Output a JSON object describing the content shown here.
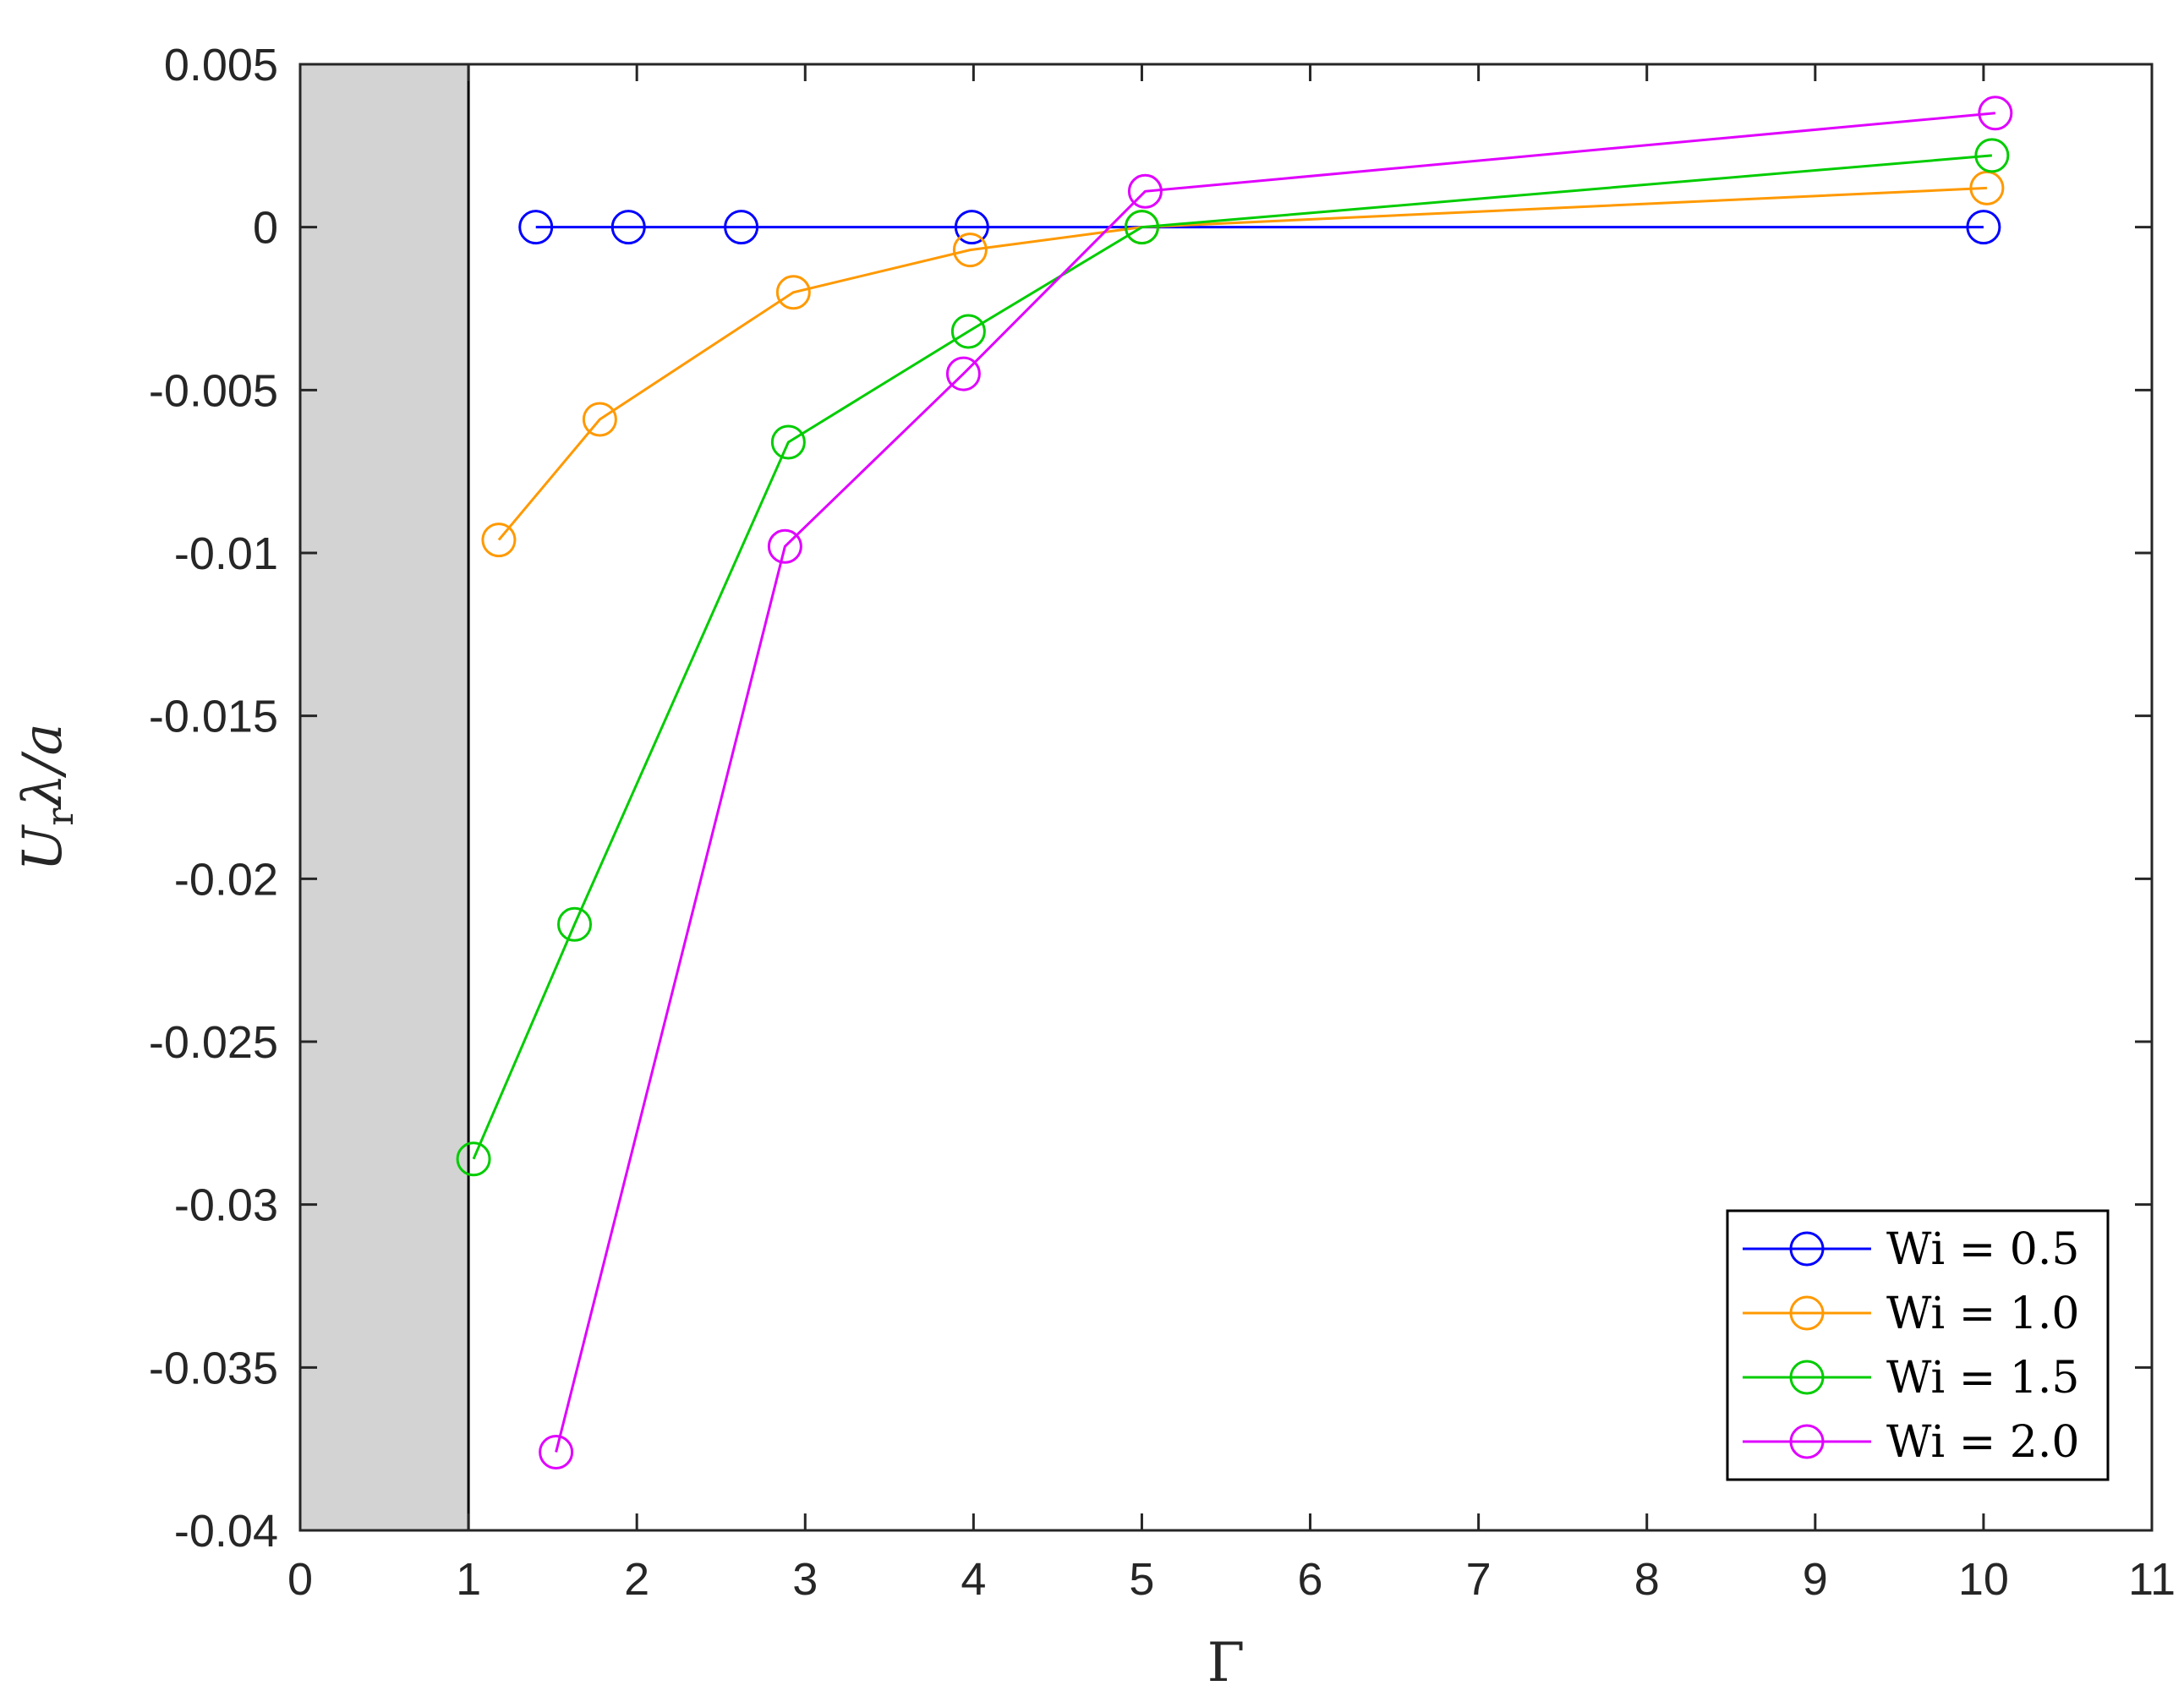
{
  "chart_data": {
    "type": "line",
    "title": "",
    "xlabel": "Γ",
    "ylabel_parts": {
      "base": "U",
      "subscript": "r",
      "rest": "λ/a"
    },
    "xlim": [
      0,
      11
    ],
    "ylim": [
      -0.04,
      0.005
    ],
    "xticks": [
      0,
      1,
      2,
      3,
      4,
      5,
      6,
      7,
      8,
      9,
      10,
      11
    ],
    "xtick_labels": [
      "0",
      "1",
      "2",
      "3",
      "4",
      "5",
      "6",
      "7",
      "8",
      "9",
      "10",
      "11"
    ],
    "yticks": [
      0.005,
      0,
      -0.005,
      -0.01,
      -0.015,
      -0.02,
      -0.025,
      -0.03,
      -0.035,
      -0.04
    ],
    "ytick_labels": [
      "0.005",
      "0",
      "-0.005",
      "-0.01",
      "-0.015",
      "-0.02",
      "-0.025",
      "-0.03",
      "-0.035",
      "-0.04"
    ],
    "grid": false,
    "legend_position": "bottom-right",
    "shaded_region": {
      "x": [
        0,
        1
      ],
      "color": "#d3d3d3"
    },
    "series": [
      {
        "name": "Wi = 0.5",
        "color": "#0000ff",
        "x": [
          1.4,
          1.95,
          2.62,
          3.99,
          10.0
        ],
        "y": [
          0.0,
          0.0,
          0.0,
          0.0,
          0.0
        ]
      },
      {
        "name": "Wi = 1.0",
        "color": "#ff9900",
        "x": [
          1.18,
          1.78,
          2.93,
          3.98,
          5.0,
          10.02
        ],
        "y": [
          -0.0096,
          -0.0059,
          -0.002,
          -0.0007,
          0.0,
          0.0012
        ]
      },
      {
        "name": "Wi = 1.5",
        "color": "#00cc00",
        "x": [
          1.03,
          1.63,
          2.9,
          3.97,
          5.0,
          10.05
        ],
        "y": [
          -0.0286,
          -0.0214,
          -0.0066,
          -0.0032,
          0.0,
          0.0022
        ]
      },
      {
        "name": "Wi = 2.0",
        "color": "#e000ff",
        "x": [
          1.52,
          2.88,
          3.94,
          5.02,
          10.07
        ],
        "y": [
          -0.0376,
          -0.0098,
          -0.0045,
          0.0011,
          0.0035
        ]
      }
    ]
  }
}
